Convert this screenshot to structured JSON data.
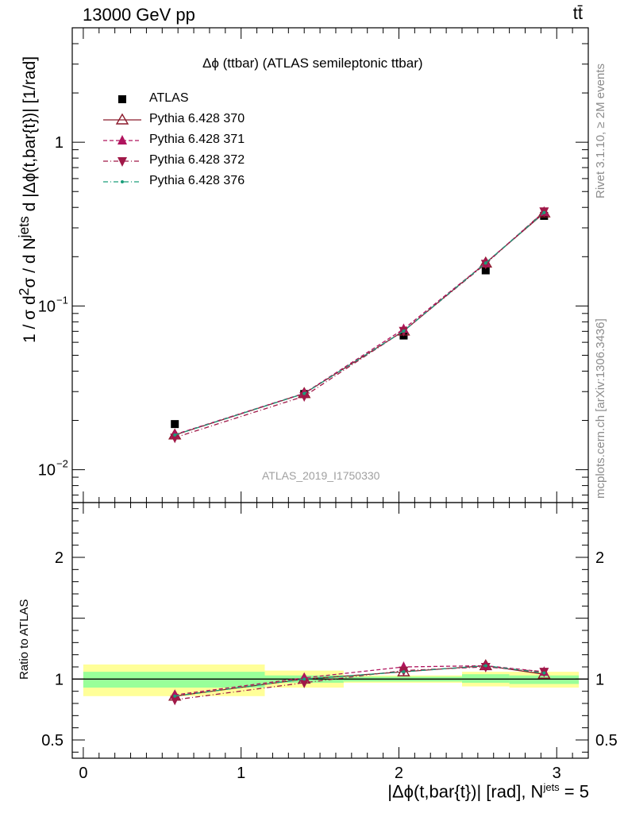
{
  "header": {
    "energy_label": "13000 GeV pp",
    "process_label": "tt̄",
    "plot_title": "Δϕ (ttbar) (ATLAS semileptonic ttbar)",
    "analysis_ref": "ATLAS_2019_I1750330",
    "side_rivet": "Rivet 3.1.10, ≥ 2M events",
    "side_mcplots": "mcplots.cern.ch [arXiv:1306.3436]"
  },
  "axes": {
    "main_ylabel_html": "1 / σ d<sup>2</sup>σ / d N<sup>jets</sup> d |Δϕ(t,bar{t})| [1/rad]",
    "ratio_ylabel": "Ratio to ATLAS",
    "xlabel_prefix": "|Δϕ(t,bar{t})| [rad], N",
    "xlabel_sup": "jets",
    "xlabel_suffix": " = 5",
    "main_yticks": [
      "1",
      "10^-1",
      "10^-2"
    ],
    "ratio_yticks": [
      "2",
      "1",
      "0.5"
    ],
    "xticks": [
      "0",
      "1",
      "2",
      "3"
    ]
  },
  "legend": [
    {
      "label": "ATLAS",
      "color": "#000000",
      "marker": "square",
      "line": "none"
    },
    {
      "label": "Pythia 6.428 370",
      "color": "#8b1a2b",
      "marker": "triangle-up-open",
      "line": "solid"
    },
    {
      "label": "Pythia 6.428 371",
      "color": "#b0145e",
      "marker": "triangle-up",
      "line": "dashed"
    },
    {
      "label": "Pythia 6.428 372",
      "color": "#a01848",
      "marker": "triangle-down",
      "line": "dashdot"
    },
    {
      "label": "Pythia 6.428 376",
      "color": "#1a9e7a",
      "marker": "dot",
      "line": "dashdot"
    }
  ],
  "chart_data": [
    {
      "type": "line",
      "panel": "main",
      "log_y": true,
      "xlim": [
        -0.07,
        3.2
      ],
      "ylim": [
        0.0063,
        5.0
      ],
      "x": [
        0.58,
        1.4,
        2.03,
        2.55,
        2.92
      ],
      "series": [
        {
          "name": "ATLAS",
          "values": [
            0.019,
            0.029,
            0.066,
            0.165,
            0.355
          ]
        },
        {
          "name": "Pythia 6.428 370",
          "values": [
            0.0163,
            0.0292,
            0.0703,
            0.183,
            0.37
          ]
        },
        {
          "name": "Pythia 6.428 371",
          "values": [
            0.0164,
            0.0293,
            0.0723,
            0.183,
            0.375
          ]
        },
        {
          "name": "Pythia 6.428 372",
          "values": [
            0.0157,
            0.0281,
            0.0705,
            0.181,
            0.378
          ]
        },
        {
          "name": "Pythia 6.428 376",
          "values": [
            0.0163,
            0.0292,
            0.0703,
            0.183,
            0.372
          ]
        }
      ]
    },
    {
      "type": "line",
      "panel": "ratio",
      "xlim": [
        -0.07,
        3.2
      ],
      "ylim": [
        0.35,
        2.45
      ],
      "x": [
        0.58,
        1.4,
        2.03,
        2.55,
        2.92
      ],
      "bands": [
        {
          "x0": 0.0,
          "x1": 1.15,
          "inner": [
            0.93,
            1.06
          ],
          "outer": [
            0.86,
            1.12
          ]
        },
        {
          "x0": 1.15,
          "x1": 1.65,
          "inner": [
            0.97,
            1.03
          ],
          "outer": [
            0.93,
            1.07
          ]
        },
        {
          "x0": 1.65,
          "x1": 2.4,
          "inner": [
            0.98,
            1.02
          ],
          "outer": [
            0.97,
            1.03
          ]
        },
        {
          "x0": 2.4,
          "x1": 2.7,
          "inner": [
            0.97,
            1.04
          ],
          "outer": [
            0.94,
            1.06
          ]
        },
        {
          "x0": 2.7,
          "x1": 3.14,
          "inner": [
            0.96,
            1.03
          ],
          "outer": [
            0.93,
            1.06
          ]
        }
      ],
      "series": [
        {
          "name": "Pythia 6.428 370",
          "values": [
            0.86,
            1.0,
            1.06,
            1.11,
            1.04
          ]
        },
        {
          "name": "Pythia 6.428 371",
          "values": [
            0.87,
            1.01,
            1.1,
            1.11,
            1.06
          ]
        },
        {
          "name": "Pythia 6.428 372",
          "values": [
            0.83,
            0.97,
            1.07,
            1.1,
            1.06
          ]
        },
        {
          "name": "Pythia 6.428 376",
          "values": [
            0.86,
            1.0,
            1.06,
            1.11,
            1.05
          ]
        }
      ]
    }
  ]
}
